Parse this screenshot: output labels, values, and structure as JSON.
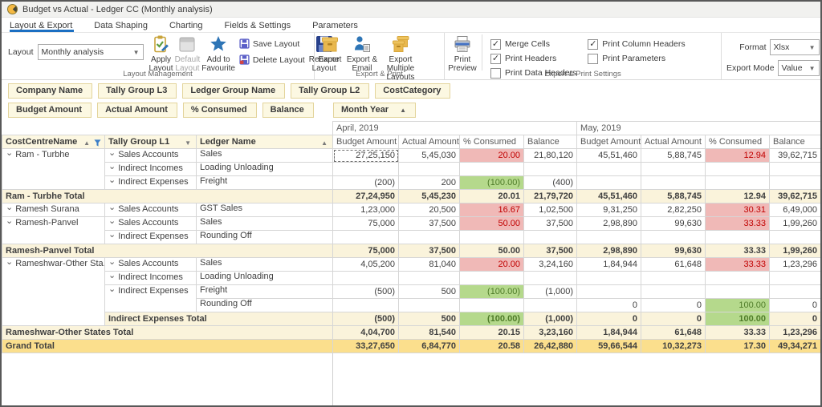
{
  "window": {
    "title": "Budget vs Actual - Ledger CC (Monthly analysis)"
  },
  "tabs": [
    {
      "label": "Layout & Export",
      "active": true
    },
    {
      "label": "Data Shaping",
      "active": false
    },
    {
      "label": "Charting",
      "active": false
    },
    {
      "label": "Fields & Settings",
      "active": false
    },
    {
      "label": "Parameters",
      "active": false
    }
  ],
  "ribbon": {
    "layout_label": "Layout",
    "layout_value": "Monthly analysis",
    "buttons": {
      "apply": "Apply Layout",
      "default": "Default Layout",
      "favourite": "Add to Favourite",
      "save": "Save Layout",
      "delete": "Delete Layout",
      "rename": "Rename Layout",
      "export": "Export",
      "export_email": "Export & Email",
      "export_multiple": "Export Multiple Layouts",
      "print_preview": "Print Preview"
    },
    "groups": [
      "Layout Management",
      "Export & Print",
      "Export & Print Settings"
    ]
  },
  "settings": {
    "checkbox_groups": [
      [
        {
          "label": "Merge Cells",
          "checked": true
        },
        {
          "label": "Print Headers",
          "checked": true
        },
        {
          "label": "Print Data Headers",
          "checked": false
        }
      ],
      [
        {
          "label": "Print Column Headers",
          "checked": true
        },
        {
          "label": "Print Parameters",
          "checked": false
        }
      ]
    ],
    "format": {
      "label": "Format",
      "value": "Xlsx"
    },
    "export_mode": {
      "label": "Export Mode",
      "value": "Value"
    }
  },
  "filter_fields": [
    "Company Name",
    "Tally Group L3",
    "Ledger Group Name",
    "Tally Group L2",
    "CostCategory"
  ],
  "data_fields": [
    "Budget Amount",
    "Actual Amount",
    "% Consumed",
    "Balance"
  ],
  "column_field": {
    "label": "Month Year",
    "sort": "asc"
  },
  "pivot": {
    "months": [
      "April, 2019",
      "May, 2019"
    ],
    "value_headers": [
      "Budget Amount",
      "Actual Amount",
      "% Consumed",
      "Balance"
    ],
    "row_headers": [
      {
        "label": "CostCentreName",
        "sort": "asc",
        "funnel": true
      },
      {
        "label": "Tally Group L1",
        "sort": "desc",
        "funnel": false
      },
      {
        "label": "Ledger Name",
        "sort": "asc",
        "funnel": false
      }
    ],
    "rows": [
      {
        "t": "d",
        "a": {
          "l": "Ram - Turbhe",
          "s": 3,
          "e": true
        },
        "b": {
          "l": "Sales Accounts",
          "e": true
        },
        "c": "Sales",
        "v": [
          {
            "x": "27,25,150",
            "sel": true
          },
          {
            "x": "5,45,030"
          },
          {
            "x": "20.00",
            "s": "r"
          },
          {
            "x": "21,80,120"
          },
          {
            "x": "45,51,460"
          },
          {
            "x": "5,88,745"
          },
          {
            "x": "12.94",
            "s": "r"
          },
          {
            "x": "39,62,715"
          }
        ]
      },
      {
        "t": "d",
        "b": {
          "l": "Indirect Incomes",
          "e": true
        },
        "c": "Loading Unloading",
        "v": [
          {},
          {},
          {},
          {},
          {},
          {},
          {},
          {}
        ]
      },
      {
        "t": "d",
        "b": {
          "l": "Indirect Expenses",
          "e": true
        },
        "c": "Freight",
        "v": [
          {
            "x": "(200)"
          },
          {
            "x": "200"
          },
          {
            "x": "(100.00)",
            "s": "g"
          },
          {
            "x": "(400)"
          },
          {},
          {},
          {},
          {}
        ]
      },
      {
        "t": "s",
        "label": "Ram - Turbhe Total",
        "v": [
          {
            "x": "27,24,950"
          },
          {
            "x": "5,45,230"
          },
          {
            "x": "20.01"
          },
          {
            "x": "21,79,720"
          },
          {
            "x": "45,51,460"
          },
          {
            "x": "5,88,745"
          },
          {
            "x": "12.94"
          },
          {
            "x": "39,62,715"
          }
        ]
      },
      {
        "t": "d",
        "a": {
          "l": "Ramesh Surana",
          "s": 1,
          "e": true
        },
        "b": {
          "l": "Sales Accounts",
          "e": true
        },
        "c": "GST Sales",
        "v": [
          {
            "x": "1,23,000"
          },
          {
            "x": "20,500"
          },
          {
            "x": "16.67",
            "s": "r"
          },
          {
            "x": "1,02,500"
          },
          {
            "x": "9,31,250"
          },
          {
            "x": "2,82,250"
          },
          {
            "x": "30.31",
            "s": "r"
          },
          {
            "x": "6,49,000"
          }
        ]
      },
      {
        "t": "d",
        "a": {
          "l": "Ramesh-Panvel",
          "s": 2,
          "e": true
        },
        "b": {
          "l": "Sales Accounts",
          "e": true
        },
        "c": "Sales",
        "v": [
          {
            "x": "75,000"
          },
          {
            "x": "37,500"
          },
          {
            "x": "50.00",
            "s": "r"
          },
          {
            "x": "37,500"
          },
          {
            "x": "2,98,890"
          },
          {
            "x": "99,630"
          },
          {
            "x": "33.33",
            "s": "r"
          },
          {
            "x": "1,99,260"
          }
        ]
      },
      {
        "t": "d",
        "b": {
          "l": "Indirect Expenses",
          "e": true
        },
        "c": "Rounding Off",
        "v": [
          {},
          {},
          {},
          {},
          {},
          {},
          {},
          {}
        ]
      },
      {
        "t": "s",
        "label": "Ramesh-Panvel Total",
        "v": [
          {
            "x": "75,000"
          },
          {
            "x": "37,500"
          },
          {
            "x": "50.00"
          },
          {
            "x": "37,500"
          },
          {
            "x": "2,98,890"
          },
          {
            "x": "99,630"
          },
          {
            "x": "33.33"
          },
          {
            "x": "1,99,260"
          }
        ]
      },
      {
        "t": "d",
        "a": {
          "l": "Rameshwar-Other Sta...",
          "s": 5,
          "e": true
        },
        "b": {
          "l": "Sales Accounts",
          "e": true
        },
        "c": "Sales",
        "v": [
          {
            "x": "4,05,200"
          },
          {
            "x": "81,040"
          },
          {
            "x": "20.00",
            "s": "r"
          },
          {
            "x": "3,24,160"
          },
          {
            "x": "1,84,944"
          },
          {
            "x": "61,648"
          },
          {
            "x": "33.33",
            "s": "r"
          },
          {
            "x": "1,23,296"
          }
        ]
      },
      {
        "t": "d",
        "b": {
          "l": "Indirect Incomes",
          "e": true
        },
        "c": "Loading Unloading",
        "v": [
          {},
          {},
          {},
          {},
          {},
          {},
          {},
          {}
        ]
      },
      {
        "t": "d",
        "b": {
          "l": "Indirect Expenses",
          "e": true,
          "s": 2
        },
        "c": "Freight",
        "v": [
          {
            "x": "(500)"
          },
          {
            "x": "500"
          },
          {
            "x": "(100.00)",
            "s": "g"
          },
          {
            "x": "(1,000)"
          },
          {},
          {},
          {},
          {}
        ]
      },
      {
        "t": "d",
        "c": "Rounding Off",
        "v": [
          {},
          {},
          {},
          {},
          {
            "x": "0"
          },
          {
            "x": "0"
          },
          {
            "x": "100.00",
            "s": "g"
          },
          {
            "x": "0"
          }
        ]
      },
      {
        "t": "si",
        "label": "Indirect Expenses Total",
        "v": [
          {
            "x": "(500)"
          },
          {
            "x": "500"
          },
          {
            "x": "(100.00)",
            "s": "g"
          },
          {
            "x": "(1,000)"
          },
          {
            "x": "0"
          },
          {
            "x": "0"
          },
          {
            "x": "100.00",
            "s": "g"
          },
          {
            "x": "0"
          }
        ]
      },
      {
        "t": "s",
        "label": "Rameshwar-Other States Total",
        "v": [
          {
            "x": "4,04,700"
          },
          {
            "x": "81,540"
          },
          {
            "x": "20.15"
          },
          {
            "x": "3,23,160"
          },
          {
            "x": "1,84,944"
          },
          {
            "x": "61,648"
          },
          {
            "x": "33.33"
          },
          {
            "x": "1,23,296"
          }
        ]
      },
      {
        "t": "g",
        "label": "Grand Total",
        "v": [
          {
            "x": "33,27,650"
          },
          {
            "x": "6,84,770"
          },
          {
            "x": "20.58"
          },
          {
            "x": "26,42,880"
          },
          {
            "x": "59,66,544"
          },
          {
            "x": "10,32,273"
          },
          {
            "x": "17.30"
          },
          {
            "x": "49,34,271"
          }
        ]
      }
    ]
  },
  "colors": {
    "accent_tab": "#1B6FC2",
    "chip_bg": "#FCF8E2",
    "chip_border": "#E3D49B",
    "subtotal_bg": "#FAF3DB",
    "grand_total_bg": "#FBDF8D",
    "over_bg": "#F0B9B7",
    "over_text": "#C00000",
    "under_bg": "#B5D98C",
    "under_text": "#4E7B28"
  }
}
